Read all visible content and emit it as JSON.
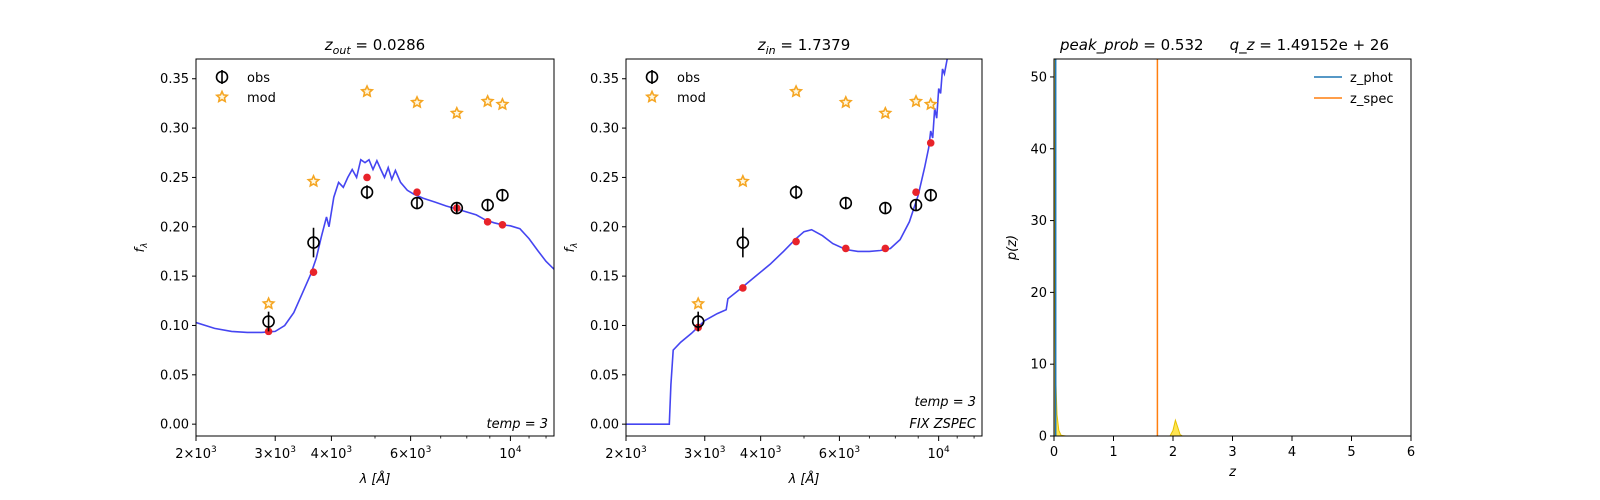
{
  "chart_data": [
    {
      "type": "scatter",
      "title_var": "z",
      "title_sub": "out",
      "title_rest": " = 0.0286",
      "xlabel": "λ [Å]",
      "ylabel": "f",
      "ylabel_sub": "λ",
      "xscale": "log",
      "xlim": [
        2000,
        12500
      ],
      "ylim": [
        -0.012,
        0.37
      ],
      "yticks": [
        0.0,
        0.05,
        0.1,
        0.15,
        0.2,
        0.25,
        0.3,
        0.35
      ],
      "ytick_labels": [
        "0.00",
        "0.05",
        "0.10",
        "0.15",
        "0.20",
        "0.25",
        "0.30",
        "0.35"
      ],
      "xticks": [
        {
          "v": 2000,
          "mant": "2×10",
          "exp": "3"
        },
        {
          "v": 3000,
          "mant": "3×10",
          "exp": "3"
        },
        {
          "v": 4000,
          "mant": "4×10",
          "exp": "3"
        },
        {
          "v": 6000,
          "mant": "6×10",
          "exp": "3"
        },
        {
          "v": 10000,
          "mant": "10",
          "exp": "4"
        }
      ],
      "legend": [
        {
          "name": "obs",
          "marker": "circle-err"
        },
        {
          "name": "mod",
          "marker": "star"
        }
      ],
      "annotations": [
        "temp = 3"
      ],
      "obs": [
        {
          "x": 2900,
          "y": 0.104,
          "err": 0.01
        },
        {
          "x": 3650,
          "y": 0.184,
          "err": 0.015
        },
        {
          "x": 4800,
          "y": 0.235,
          "err": 0.007
        },
        {
          "x": 6200,
          "y": 0.224,
          "err": 0.006
        },
        {
          "x": 7600,
          "y": 0.219,
          "err": 0.005
        },
        {
          "x": 8900,
          "y": 0.222,
          "err": 0.006
        },
        {
          "x": 9600,
          "y": 0.232,
          "err": 0.006
        }
      ],
      "mod": [
        {
          "x": 2900,
          "y": 0.122
        },
        {
          "x": 3650,
          "y": 0.246
        },
        {
          "x": 4800,
          "y": 0.337
        },
        {
          "x": 6200,
          "y": 0.326
        },
        {
          "x": 7600,
          "y": 0.315
        },
        {
          "x": 8900,
          "y": 0.327
        },
        {
          "x": 9600,
          "y": 0.324
        }
      ],
      "model_points": [
        {
          "x": 2900,
          "y": 0.094
        },
        {
          "x": 3650,
          "y": 0.154
        },
        {
          "x": 4800,
          "y": 0.25
        },
        {
          "x": 6200,
          "y": 0.235
        },
        {
          "x": 7600,
          "y": 0.219
        },
        {
          "x": 8900,
          "y": 0.205
        },
        {
          "x": 9600,
          "y": 0.202
        }
      ],
      "sed_curve": [
        [
          2000,
          0.103
        ],
        [
          2200,
          0.097
        ],
        [
          2400,
          0.094
        ],
        [
          2600,
          0.093
        ],
        [
          2800,
          0.093
        ],
        [
          3000,
          0.094
        ],
        [
          3150,
          0.1
        ],
        [
          3300,
          0.113
        ],
        [
          3450,
          0.133
        ],
        [
          3600,
          0.152
        ],
        [
          3700,
          0.168
        ],
        [
          3800,
          0.19
        ],
        [
          3900,
          0.21
        ],
        [
          3950,
          0.2
        ],
        [
          4050,
          0.23
        ],
        [
          4150,
          0.245
        ],
        [
          4250,
          0.24
        ],
        [
          4350,
          0.25
        ],
        [
          4450,
          0.258
        ],
        [
          4550,
          0.25
        ],
        [
          4650,
          0.268
        ],
        [
          4750,
          0.265
        ],
        [
          4850,
          0.268
        ],
        [
          4950,
          0.258
        ],
        [
          5050,
          0.267
        ],
        [
          5150,
          0.258
        ],
        [
          5250,
          0.25
        ],
        [
          5350,
          0.26
        ],
        [
          5450,
          0.248
        ],
        [
          5550,
          0.257
        ],
        [
          5700,
          0.245
        ],
        [
          5900,
          0.237
        ],
        [
          6100,
          0.233
        ],
        [
          6400,
          0.229
        ],
        [
          6800,
          0.225
        ],
        [
          7200,
          0.221
        ],
        [
          7600,
          0.218
        ],
        [
          8000,
          0.215
        ],
        [
          8400,
          0.212
        ],
        [
          8800,
          0.207
        ],
        [
          9200,
          0.204
        ],
        [
          9600,
          0.202
        ],
        [
          10000,
          0.201
        ],
        [
          10500,
          0.198
        ],
        [
          11000,
          0.188
        ],
        [
          11500,
          0.176
        ],
        [
          12000,
          0.165
        ],
        [
          12500,
          0.157
        ]
      ]
    },
    {
      "type": "scatter",
      "title_var": "z",
      "title_sub": "in",
      "title_rest": " = 1.7379",
      "xlabel": "λ [Å]",
      "ylabel": "f",
      "ylabel_sub": "λ",
      "xscale": "log",
      "xlim": [
        2000,
        12500
      ],
      "ylim": [
        -0.012,
        0.37
      ],
      "yticks": [
        0.0,
        0.05,
        0.1,
        0.15,
        0.2,
        0.25,
        0.3,
        0.35
      ],
      "ytick_labels": [
        "0.00",
        "0.05",
        "0.10",
        "0.15",
        "0.20",
        "0.25",
        "0.30",
        "0.35"
      ],
      "xticks": [
        {
          "v": 2000,
          "mant": "2×10",
          "exp": "3"
        },
        {
          "v": 3000,
          "mant": "3×10",
          "exp": "3"
        },
        {
          "v": 4000,
          "mant": "4×10",
          "exp": "3"
        },
        {
          "v": 6000,
          "mant": "6×10",
          "exp": "3"
        },
        {
          "v": 10000,
          "mant": "10",
          "exp": "4"
        }
      ],
      "legend": [
        {
          "name": "obs",
          "marker": "circle-err"
        },
        {
          "name": "mod",
          "marker": "star"
        }
      ],
      "annotations": [
        "temp = 3",
        "FIX ZSPEC"
      ],
      "obs": [
        {
          "x": 2900,
          "y": 0.104,
          "err": 0.01
        },
        {
          "x": 3650,
          "y": 0.184,
          "err": 0.015
        },
        {
          "x": 4800,
          "y": 0.235,
          "err": 0.007
        },
        {
          "x": 6200,
          "y": 0.224,
          "err": 0.006
        },
        {
          "x": 7600,
          "y": 0.219,
          "err": 0.005
        },
        {
          "x": 8900,
          "y": 0.222,
          "err": 0.006
        },
        {
          "x": 9600,
          "y": 0.232,
          "err": 0.006
        }
      ],
      "mod": [
        {
          "x": 2900,
          "y": 0.122
        },
        {
          "x": 3650,
          "y": 0.246
        },
        {
          "x": 4800,
          "y": 0.337
        },
        {
          "x": 6200,
          "y": 0.326
        },
        {
          "x": 7600,
          "y": 0.315
        },
        {
          "x": 8900,
          "y": 0.327
        },
        {
          "x": 9600,
          "y": 0.324
        }
      ],
      "model_points": [
        {
          "x": 2900,
          "y": 0.098
        },
        {
          "x": 3650,
          "y": 0.138
        },
        {
          "x": 4800,
          "y": 0.185
        },
        {
          "x": 6200,
          "y": 0.178
        },
        {
          "x": 7600,
          "y": 0.178
        },
        {
          "x": 8900,
          "y": 0.235
        },
        {
          "x": 9600,
          "y": 0.285
        }
      ],
      "sed_curve": [
        [
          2000,
          0.0
        ],
        [
          2500,
          0.0
        ],
        [
          2520,
          0.04
        ],
        [
          2550,
          0.075
        ],
        [
          2650,
          0.083
        ],
        [
          2800,
          0.092
        ],
        [
          3000,
          0.105
        ],
        [
          3200,
          0.112
        ],
        [
          3350,
          0.116
        ],
        [
          3380,
          0.127
        ],
        [
          3600,
          0.137
        ],
        [
          3900,
          0.15
        ],
        [
          4200,
          0.162
        ],
        [
          4500,
          0.175
        ],
        [
          4800,
          0.188
        ],
        [
          5000,
          0.195
        ],
        [
          5200,
          0.197
        ],
        [
          5500,
          0.191
        ],
        [
          5800,
          0.183
        ],
        [
          6200,
          0.177
        ],
        [
          6600,
          0.175
        ],
        [
          7000,
          0.175
        ],
        [
          7400,
          0.176
        ],
        [
          7800,
          0.178
        ],
        [
          8200,
          0.187
        ],
        [
          8600,
          0.205
        ],
        [
          9000,
          0.232
        ],
        [
          9300,
          0.26
        ],
        [
          9500,
          0.28
        ],
        [
          9600,
          0.297
        ],
        [
          9700,
          0.29
        ],
        [
          9800,
          0.32
        ],
        [
          9900,
          0.31
        ],
        [
          10000,
          0.34
        ],
        [
          10100,
          0.335
        ],
        [
          10200,
          0.36
        ],
        [
          10300,
          0.355
        ],
        [
          10450,
          0.37
        ]
      ]
    },
    {
      "type": "line",
      "title_parts": [
        {
          "text": "peak_prob",
          "italic": true
        },
        {
          "text": " = 0.532",
          "italic": false
        },
        {
          "text": "q_z",
          "italic": true
        },
        {
          "text": " = 1.49152e + 26",
          "italic": false
        }
      ],
      "xlabel": "z",
      "ylabel": "p(z)",
      "xlim": [
        0,
        6
      ],
      "ylim": [
        0,
        52.5
      ],
      "xticks": [
        0,
        1,
        2,
        3,
        4,
        5,
        6
      ],
      "yticks": [
        0,
        10,
        20,
        30,
        40,
        50
      ],
      "series": [
        {
          "name": "z_phot",
          "color": "#1f77b4"
        },
        {
          "name": "z_spec",
          "color": "#ff7f0e"
        }
      ],
      "z_phot_peak": 0.0286,
      "z_spec": 1.7379,
      "pdf_curve": [
        [
          0,
          52.5
        ],
        [
          0.005,
          52.5
        ],
        [
          0.01,
          30
        ],
        [
          0.02,
          14
        ],
        [
          0.03,
          8
        ],
        [
          0.05,
          3
        ],
        [
          0.08,
          0.8
        ],
        [
          0.12,
          0.1
        ],
        [
          0.2,
          0
        ],
        [
          1.95,
          0
        ],
        [
          2.0,
          0.8
        ],
        [
          2.04,
          2.2
        ],
        [
          2.08,
          1.2
        ],
        [
          2.12,
          0.2
        ],
        [
          2.16,
          0
        ],
        [
          5.0,
          0
        ]
      ]
    }
  ],
  "colors": {
    "sed": "#3b3bf0",
    "obs": "#000000",
    "mod": "#f5a623",
    "model_point": "#e8232a",
    "pdf_fill": "#ffe033",
    "z_phot": "#1f77b4",
    "z_spec": "#ff7f0e"
  }
}
